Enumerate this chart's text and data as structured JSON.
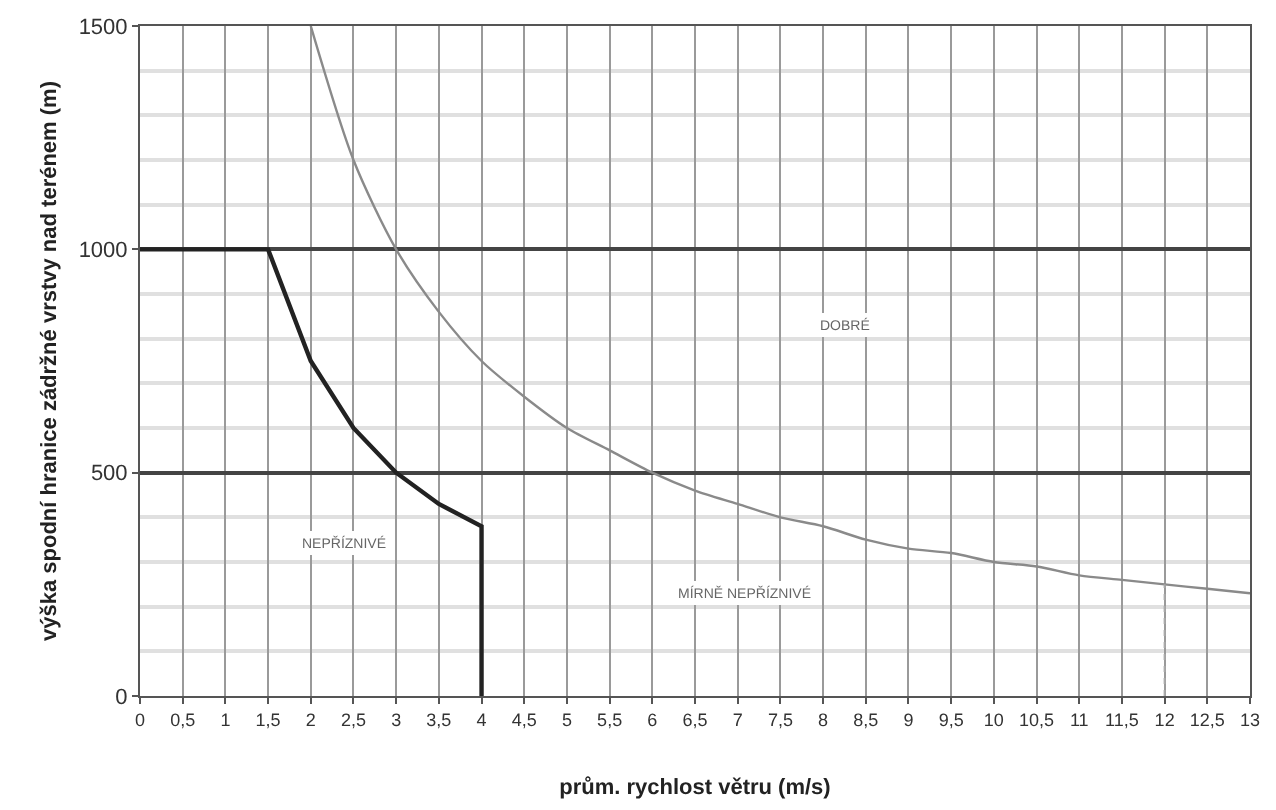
{
  "chart_data": {
    "type": "line",
    "xlabel": "prům. rychlost větru (m/s)",
    "ylabel": "výška spodní hranice zádržné vrstvy nad terénem (m)",
    "series": [
      {
        "color": "#8a8a8a",
        "x": [
          2,
          2.5,
          3,
          3.5,
          4,
          4.5,
          5,
          5.5,
          6,
          6.5,
          7,
          7.5,
          8,
          8.5,
          9,
          9.5,
          10,
          10.5,
          11,
          11.5,
          12,
          12.5,
          13
        ],
        "values": [
          1500,
          1200,
          1000,
          860,
          750,
          670,
          600,
          550,
          500,
          460,
          430,
          400,
          380,
          350,
          330,
          320,
          300,
          290,
          270,
          260,
          250,
          240,
          230
        ]
      },
      {
        "color": "#222222",
        "x": [
          0,
          1.5,
          2,
          2.5,
          3,
          3.5,
          4,
          4
        ],
        "values": [
          1000,
          1000,
          750,
          600,
          500,
          430,
          380,
          0
        ]
      },
      {
        "color": "#aaaaaa",
        "line_style": "dotted",
        "x": [
          12,
          12
        ],
        "values": [
          0,
          250
        ]
      }
    ],
    "annotations": [
      "DOBRÉ",
      "NEPŘÍZNIVÉ",
      "MÍRNĚ NEPŘÍZNIVÉ"
    ],
    "xlim": [
      0,
      13
    ],
    "ylim": [
      0,
      1500
    ],
    "xticks": [
      0,
      {
        "value": 0.5,
        "label": "0,5"
      },
      1,
      {
        "value": 1.5,
        "label": "1,5"
      },
      2,
      {
        "value": 2.5,
        "label": "2,5"
      },
      3,
      {
        "value": 3.5,
        "label": "3,5"
      },
      4,
      {
        "value": 4.5,
        "label": "4,5"
      },
      5,
      {
        "value": 5.5,
        "label": "5,5"
      },
      6,
      {
        "value": 6.5,
        "label": "6,5"
      },
      7,
      {
        "value": 7.5,
        "label": "7,5"
      },
      8,
      {
        "value": 8.5,
        "label": "8,5"
      },
      9,
      {
        "value": 9.5,
        "label": "9,5"
      },
      10,
      {
        "value": 10.5,
        "label": "10,5"
      },
      11,
      {
        "value": 11.5,
        "label": "11,5"
      },
      12,
      {
        "value": 12.5,
        "label": "12,5"
      },
      13
    ],
    "yticks": [
      0,
      {
        "value": 100,
        "label": null
      },
      {
        "value": 200,
        "label": null
      },
      {
        "value": 300,
        "label": null
      },
      {
        "value": 400,
        "label": null
      },
      500,
      {
        "value": 600,
        "label": null
      },
      {
        "value": 700,
        "label": null
      },
      {
        "value": 800,
        "label": null
      },
      {
        "value": 900,
        "label": null
      },
      1000,
      {
        "value": 1100,
        "label": null
      },
      {
        "value": 1200,
        "label": null
      },
      {
        "value": 1300,
        "label": null
      },
      {
        "value": 1400,
        "label": null
      },
      1500
    ],
    "grid": true,
    "marker": "none"
  }
}
